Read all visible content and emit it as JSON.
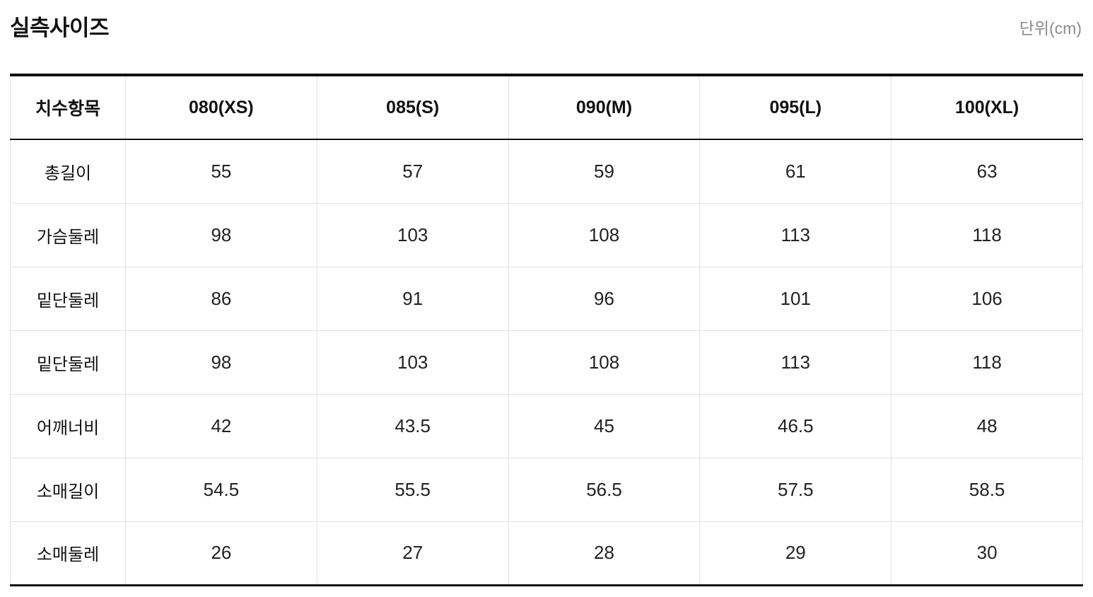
{
  "header": {
    "title": "실측사이즈",
    "unit": "단위(cm)"
  },
  "colors": {
    "text_primary": "#111111",
    "text_secondary": "#8b8b8b",
    "border_strong": "#111111",
    "border_light": "#e3e3e3",
    "background": "#ffffff"
  },
  "chart_data": {
    "type": "table",
    "title": "실측사이즈",
    "unit": "단위(cm)",
    "columns": [
      "치수항목",
      "080(XS)",
      "085(S)",
      "090(M)",
      "095(L)",
      "100(XL)"
    ],
    "rows": [
      {
        "label": "총길이",
        "values": [
          "55",
          "57",
          "59",
          "61",
          "63"
        ]
      },
      {
        "label": "가슴둘레",
        "values": [
          "98",
          "103",
          "108",
          "113",
          "118"
        ]
      },
      {
        "label": "밑단둘레",
        "values": [
          "86",
          "91",
          "96",
          "101",
          "106"
        ]
      },
      {
        "label": "밑단둘레",
        "values": [
          "98",
          "103",
          "108",
          "113",
          "118"
        ]
      },
      {
        "label": "어깨너비",
        "values": [
          "42",
          "43.5",
          "45",
          "46.5",
          "48"
        ]
      },
      {
        "label": "소매길이",
        "values": [
          "54.5",
          "55.5",
          "56.5",
          "57.5",
          "58.5"
        ]
      },
      {
        "label": "소매둘레",
        "values": [
          "26",
          "27",
          "28",
          "29",
          "30"
        ]
      }
    ]
  }
}
